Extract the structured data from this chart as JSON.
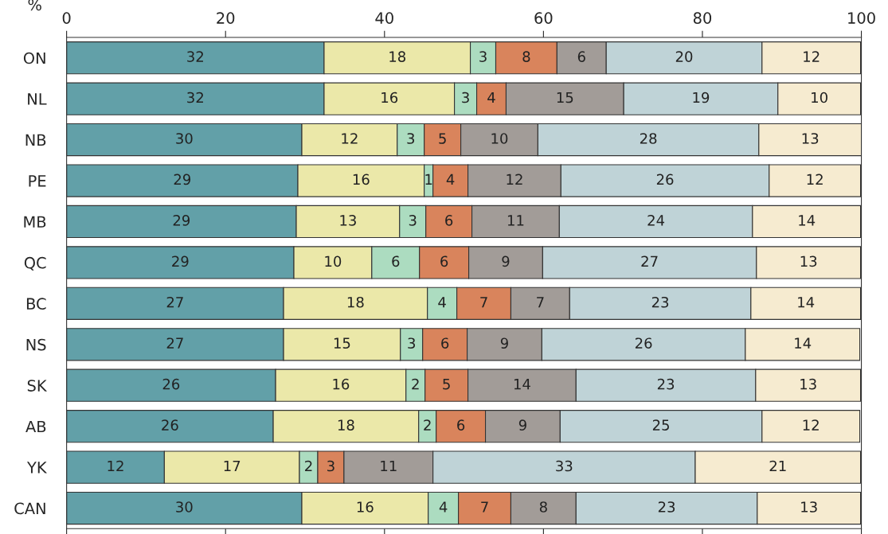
{
  "chart_data": {
    "type": "bar",
    "orientation": "horizontal",
    "stacked": true,
    "xlabel": "%",
    "categories": [
      "ON",
      "NL",
      "NB",
      "PE",
      "MB",
      "QC",
      "BC",
      "NS",
      "SK",
      "AB",
      "YK",
      "CAN"
    ],
    "xlim": [
      0,
      100
    ],
    "xticks": [
      0,
      20,
      40,
      60,
      80,
      100
    ],
    "grid": false,
    "legend": false,
    "series": [
      {
        "color": "#62a0a8",
        "values": [
          32.4,
          32.4,
          29.6,
          29.1,
          28.9,
          28.6,
          27.3,
          27.3,
          26.3,
          26.0,
          12.3,
          29.6
        ],
        "value_labels": [
          "32",
          "32",
          "30",
          "29",
          "29",
          "29",
          "27",
          "27",
          "26",
          "26",
          "12",
          "30"
        ]
      },
      {
        "color": "#ebe8a9",
        "values": [
          18.4,
          16.4,
          12.0,
          15.9,
          13.0,
          9.8,
          18.1,
          14.7,
          16.4,
          18.3,
          17.0,
          15.9
        ],
        "value_labels": [
          "18",
          "16",
          "12",
          "16",
          "13",
          "10",
          "18",
          "15",
          "16",
          "18",
          "17",
          "16"
        ]
      },
      {
        "color": "#acdcc0",
        "values": [
          3.2,
          2.8,
          3.4,
          1.1,
          3.3,
          6.0,
          3.7,
          2.8,
          2.4,
          2.2,
          2.3,
          3.8
        ],
        "value_labels": [
          "3",
          "3",
          "3",
          "1",
          "3",
          "6",
          "4",
          "3",
          "2",
          "2",
          "2",
          "4"
        ]
      },
      {
        "color": "#d9845c",
        "values": [
          7.7,
          3.7,
          4.6,
          4.4,
          5.8,
          6.2,
          6.8,
          5.6,
          5.4,
          6.2,
          3.3,
          6.6
        ],
        "value_labels": [
          "8",
          "4",
          "5",
          "4",
          "6",
          "6",
          "7",
          "6",
          "5",
          "6",
          "3",
          "7"
        ]
      },
      {
        "color": "#a29c98",
        "values": [
          6.2,
          14.8,
          9.7,
          11.7,
          11.0,
          9.3,
          7.4,
          9.4,
          13.6,
          9.4,
          11.2,
          8.2
        ],
        "value_labels": [
          "6",
          "15",
          "10",
          "12",
          "11",
          "9",
          "7",
          "9",
          "14",
          "9",
          "11",
          "8"
        ]
      },
      {
        "color": "#bfd3d7",
        "values": [
          19.6,
          19.4,
          27.8,
          26.2,
          24.3,
          26.9,
          22.8,
          25.6,
          22.6,
          25.4,
          33.0,
          22.8
        ],
        "value_labels": [
          "20",
          "19",
          "28",
          "26",
          "24",
          "27",
          "23",
          "26",
          "23",
          "25",
          "33",
          "23"
        ]
      },
      {
        "color": "#f6ebd0",
        "values": [
          12.4,
          10.4,
          12.9,
          11.5,
          13.6,
          13.1,
          13.8,
          14.4,
          13.2,
          12.3,
          20.8,
          13.0
        ],
        "value_labels": [
          "12",
          "10",
          "13",
          "12",
          "14",
          "13",
          "14",
          "14",
          "13",
          "12",
          "21",
          "13"
        ]
      }
    ]
  }
}
